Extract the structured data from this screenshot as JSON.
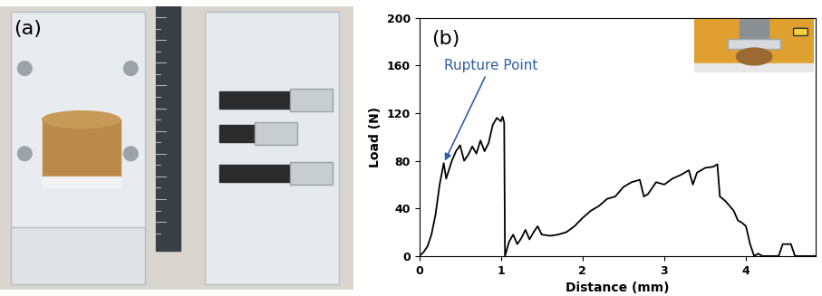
{
  "image_panel": {
    "label": "(a)"
  },
  "chart_data": {
    "type": "line",
    "title": "(b)",
    "x_label": "Distance (mm)",
    "y_label": "Load (N)",
    "x": [
      0,
      0.05,
      0.1,
      0.15,
      0.2,
      0.25,
      0.3,
      0.33,
      0.4,
      0.45,
      0.5,
      0.55,
      0.6,
      0.65,
      0.7,
      0.75,
      0.8,
      0.85,
      0.9,
      0.95,
      1.0,
      1.02,
      1.04,
      1.05,
      1.1,
      1.15,
      1.2,
      1.25,
      1.3,
      1.35,
      1.4,
      1.45,
      1.5,
      1.6,
      1.7,
      1.8,
      1.9,
      2.0,
      2.1,
      2.2,
      2.3,
      2.4,
      2.5,
      2.6,
      2.7,
      2.75,
      2.8,
      2.9,
      3.0,
      3.1,
      3.2,
      3.3,
      3.35,
      3.4,
      3.5,
      3.6,
      3.65,
      3.68,
      3.75,
      3.8,
      3.85,
      3.9,
      3.95,
      4.0,
      4.05,
      4.1,
      4.15,
      4.2,
      4.4,
      4.45,
      4.55,
      4.6,
      4.85
    ],
    "values": [
      0,
      3,
      8,
      18,
      35,
      60,
      78,
      65,
      80,
      88,
      93,
      80,
      85,
      92,
      86,
      97,
      88,
      95,
      110,
      116,
      113,
      117,
      112,
      0,
      12,
      18,
      10,
      15,
      22,
      14,
      20,
      25,
      18,
      17,
      18,
      20,
      25,
      32,
      38,
      42,
      48,
      50,
      58,
      62,
      64,
      50,
      52,
      62,
      60,
      65,
      68,
      72,
      60,
      70,
      74,
      75,
      77,
      50,
      46,
      42,
      38,
      30,
      28,
      25,
      10,
      0,
      2,
      0,
      0,
      10,
      10,
      0,
      0
    ],
    "color": "#000000",
    "xlim": [
      0,
      4.85
    ],
    "ylim": [
      0,
      200
    ],
    "xticks": [
      0,
      1,
      2,
      3,
      4
    ],
    "yticks": [
      0,
      40,
      80,
      120,
      160,
      200
    ],
    "grid": false,
    "annotations": [
      {
        "text": "Rupture Point",
        "x": 0.3,
        "y": 78,
        "color": "#2e5fa8"
      }
    ]
  }
}
